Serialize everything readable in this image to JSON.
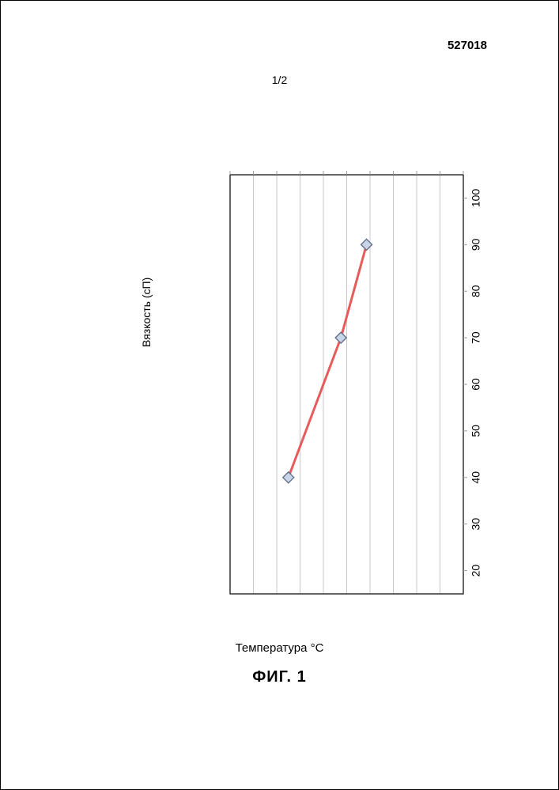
{
  "doc": {
    "number": "527018",
    "page_counter": "1/2"
  },
  "figure": {
    "label": "ФИГ. 1"
  },
  "chart": {
    "type": "line",
    "x_title": "Температура °С",
    "y_title": "Вязкость (сП)",
    "xlim": [
      15,
      105
    ],
    "ylim": [
      0,
      20
    ],
    "x_ticks": [
      20,
      30,
      40,
      50,
      60,
      70,
      80,
      90,
      100
    ],
    "y_ticks": [
      0,
      2,
      4,
      6,
      8,
      10,
      12,
      14,
      16,
      18,
      20
    ],
    "y_grid": [
      2,
      4,
      6,
      8,
      10,
      12,
      14,
      16,
      18
    ],
    "series": {
      "x": [
        40,
        70,
        90
      ],
      "y": [
        15,
        10.5,
        8.3
      ],
      "line_color": "#e85b5b",
      "line_width": 3,
      "marker_fill": "#c9d4e6",
      "marker_stroke": "#5a6a88",
      "marker_size": 7
    },
    "axis_color": "#9e9e9e",
    "grid_color": "#c9c9c9",
    "tick_label_color": "#000000",
    "tick_label_fontsize": 14,
    "background_color": "#ffffff",
    "border_color": "#000000"
  }
}
